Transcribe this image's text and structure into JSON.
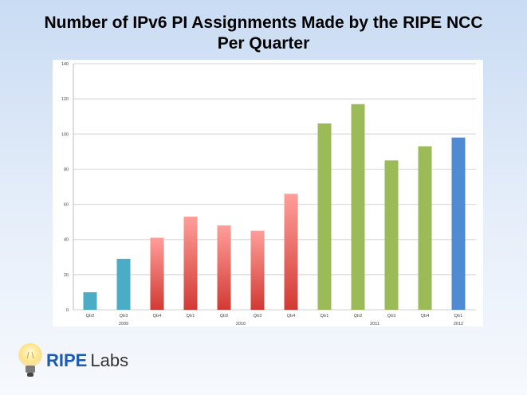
{
  "chart_data": {
    "type": "bar",
    "title_line1": "Number of IPv6 PI Assignments Made by the RIPE NCC",
    "title_line2": "Per Quarter",
    "categories": [
      "Qtr2",
      "Qtr3",
      "Qtr4",
      "Qtr1",
      "Qtr2",
      "Qtr3",
      "Qtr4",
      "Qtr1",
      "Qtr2",
      "Qtr3",
      "Qtr4",
      "Qtr1"
    ],
    "years": [
      {
        "label": "2009",
        "first": 0,
        "last": 2
      },
      {
        "label": "2010",
        "first": 3,
        "last": 6
      },
      {
        "label": "2011",
        "first": 7,
        "last": 10
      },
      {
        "label": "2012",
        "first": 11,
        "last": 11
      }
    ],
    "values": [
      10,
      29,
      41,
      53,
      48,
      45,
      66,
      106,
      117,
      85,
      93,
      98
    ],
    "bar_colors": [
      "teal",
      "teal",
      "red",
      "red",
      "red",
      "red",
      "red",
      "green",
      "green",
      "green",
      "green",
      "blue"
    ],
    "colors": {
      "teal": "#4bacc6",
      "red_top": "#ff9e9a",
      "red_bottom": "#d23a33",
      "green": "#9bbb59",
      "blue": "#4f8bd5"
    },
    "ylim": [
      0,
      140
    ],
    "yticks": [
      0,
      20,
      40,
      60,
      80,
      100,
      120,
      140
    ],
    "grid": true,
    "xlabel": "",
    "ylabel": ""
  },
  "logo": {
    "ripe": "RIPE",
    "labs": "Labs"
  }
}
